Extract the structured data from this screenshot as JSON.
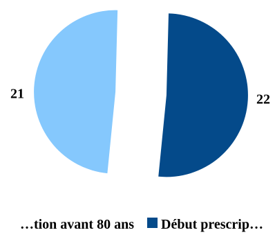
{
  "chart_data": {
    "type": "pie",
    "title": "",
    "legend_position": "bottom",
    "slices": [
      {
        "label": "…tion avant 80 ans",
        "value": 21,
        "color": "#85C8FD",
        "data_label": "21"
      },
      {
        "label": "Début prescrip…",
        "value": 22,
        "color": "#044A8A",
        "data_label": "22"
      }
    ]
  }
}
